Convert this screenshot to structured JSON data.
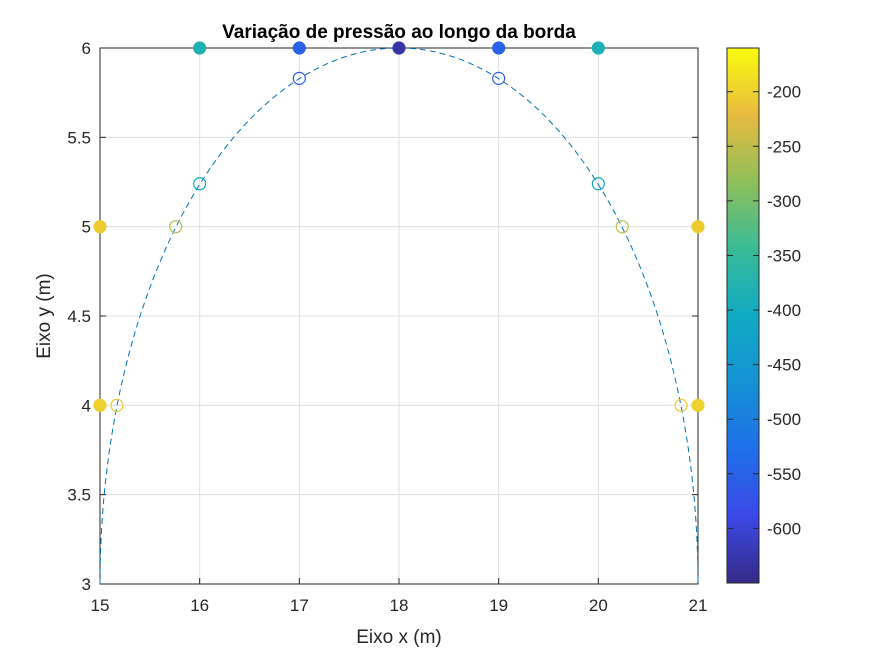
{
  "chart_data": {
    "type": "scatter",
    "title": "Variação de pressão ao longo da borda",
    "xlabel": "Eixo x (m)",
    "ylabel": "Eixo y (m)",
    "xlim": [
      15,
      21
    ],
    "ylim": [
      3,
      6
    ],
    "xticks": [
      "15",
      "16",
      "17",
      "18",
      "19",
      "20",
      "21"
    ],
    "yticks": [
      "3",
      "3.5",
      "4",
      "4.5",
      "5",
      "5.5",
      "6"
    ],
    "grid": true,
    "boundary_curve": {
      "style": "dashed",
      "color": "#0072bd",
      "shape": "half-ellipse",
      "center": [
        18,
        3
      ],
      "semi_axis_x": 3,
      "semi_axis_y": 3
    },
    "series": [
      {
        "marker": "filled-circle",
        "points": [
          {
            "x": 15,
            "y": 4,
            "value": -200
          },
          {
            "x": 15,
            "y": 5,
            "value": -205
          },
          {
            "x": 16,
            "y": 6,
            "value": -385
          },
          {
            "x": 17,
            "y": 6,
            "value": -550
          },
          {
            "x": 18,
            "y": 6,
            "value": -630
          },
          {
            "x": 19,
            "y": 6,
            "value": -550
          },
          {
            "x": 20,
            "y": 6,
            "value": -385
          },
          {
            "x": 21,
            "y": 5,
            "value": -205
          },
          {
            "x": 21,
            "y": 4,
            "value": -200
          }
        ]
      },
      {
        "marker": "open-circle",
        "points": [
          {
            "x": 15.17,
            "y": 4,
            "value": -210
          },
          {
            "x": 15.76,
            "y": 5,
            "value": -250
          },
          {
            "x": 16,
            "y": 5.24,
            "value": -410
          },
          {
            "x": 17,
            "y": 5.83,
            "value": -560
          },
          {
            "x": 19,
            "y": 5.83,
            "value": -560
          },
          {
            "x": 20,
            "y": 5.24,
            "value": -410
          },
          {
            "x": 20.24,
            "y": 5,
            "value": -250
          },
          {
            "x": 20.83,
            "y": 4,
            "value": -210
          }
        ]
      }
    ],
    "colorbar": {
      "colormap": "parula",
      "range": [
        -650,
        -160
      ],
      "ticks": [
        "-200",
        "-250",
        "-300",
        "-350",
        "-400",
        "-450",
        "-500",
        "-550",
        "-600"
      ]
    }
  }
}
